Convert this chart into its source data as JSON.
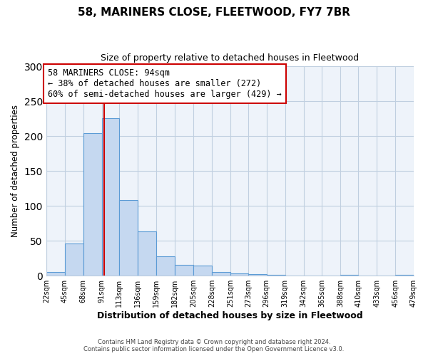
{
  "title": "58, MARINERS CLOSE, FLEETWOOD, FY7 7BR",
  "subtitle": "Size of property relative to detached houses in Fleetwood",
  "xlabel": "Distribution of detached houses by size in Fleetwood",
  "ylabel": "Number of detached properties",
  "bin_edges": [
    22,
    45,
    68,
    91,
    113,
    136,
    159,
    182,
    205,
    228,
    251,
    273,
    296,
    319,
    342,
    365,
    388,
    410,
    433,
    456,
    479
  ],
  "bin_labels": [
    "22sqm",
    "45sqm",
    "68sqm",
    "91sqm",
    "113sqm",
    "136sqm",
    "159sqm",
    "182sqm",
    "205sqm",
    "228sqm",
    "251sqm",
    "273sqm",
    "296sqm",
    "319sqm",
    "342sqm",
    "365sqm",
    "388sqm",
    "410sqm",
    "433sqm",
    "456sqm",
    "479sqm"
  ],
  "counts": [
    5,
    46,
    204,
    226,
    108,
    63,
    28,
    16,
    14,
    5,
    3,
    2,
    1,
    0,
    0,
    0,
    1,
    0,
    0,
    1
  ],
  "bar_facecolor": "#c5d8f0",
  "bar_edgecolor": "#5b9bd5",
  "vline_x": 94,
  "vline_color": "#cc0000",
  "annotation_title": "58 MARINERS CLOSE: 94sqm",
  "annotation_line1": "← 38% of detached houses are smaller (272)",
  "annotation_line2": "60% of semi-detached houses are larger (429) →",
  "annotation_box_edgecolor": "#cc0000",
  "ylim": [
    0,
    300
  ],
  "yticks": [
    0,
    50,
    100,
    150,
    200,
    250,
    300
  ],
  "footer_line1": "Contains HM Land Registry data © Crown copyright and database right 2024.",
  "footer_line2": "Contains public sector information licensed under the Open Government Licence v3.0.",
  "background_color": "#ffffff",
  "plot_bg_color": "#eef3fa",
  "grid_color": "#c0cfe0"
}
